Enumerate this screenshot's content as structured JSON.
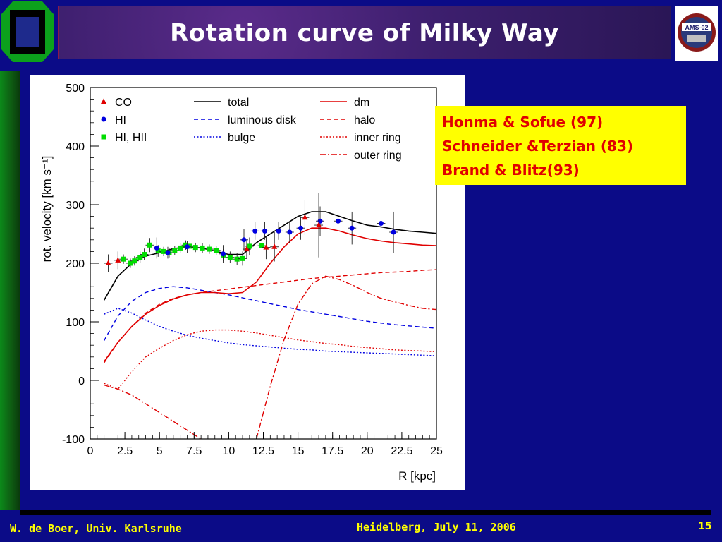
{
  "slide": {
    "title": "Rotation curve of Milky Way",
    "note_lines": [
      "Honma & Sofue (97)",
      "Schneider &Terzian (83)",
      "Brand & Blitz(93)"
    ],
    "footer_left": "W. de Boer, Univ. Karlsruhe",
    "footer_center": "Heidelberg, July 11, 2006",
    "page_number": "15",
    "logo_right_text": "AMS-02",
    "colors": {
      "background": "#0b0b87",
      "title_text": "#ffffff",
      "note_bg": "#ffff00",
      "note_text": "#e00000",
      "footer_text": "#ffff00"
    }
  },
  "chart_data": {
    "type": "line",
    "xlabel": "R [kpc]",
    "ylabel": "rot. velocity [km s⁻¹]",
    "xlim": [
      0,
      25
    ],
    "ylim": [
      -100,
      500
    ],
    "xticks": [
      "0",
      "2.5",
      "5",
      "7.5",
      "10",
      "12.5",
      "15",
      "17.5",
      "20",
      "22.5",
      "25"
    ],
    "yticks": [
      "-100",
      "0",
      "100",
      "200",
      "300",
      "400",
      "500"
    ],
    "legend_markers": [
      {
        "label": "CO",
        "color": "#e00000",
        "marker": "triangle"
      },
      {
        "label": "HI",
        "color": "#0000e0",
        "marker": "circle"
      },
      {
        "label": "HI, HII",
        "color": "#00dd00",
        "marker": "square"
      }
    ],
    "legend_lines": [
      {
        "label": "total",
        "color": "#000000",
        "dash": "solid"
      },
      {
        "label": "luminous disk",
        "color": "#0000e0",
        "dash": "dashed"
      },
      {
        "label": "bulge",
        "color": "#0000e0",
        "dash": "dotted"
      },
      {
        "label": "dm",
        "color": "#e00000",
        "dash": "solid"
      },
      {
        "label": "halo",
        "color": "#e00000",
        "dash": "dashed"
      },
      {
        "label": "inner ring",
        "color": "#e00000",
        "dash": "dotted"
      },
      {
        "label": "outer ring",
        "color": "#e00000",
        "dash": "dashdot"
      }
    ],
    "series": [
      {
        "name": "total",
        "color": "#000000",
        "dash": "solid",
        "width": 1.6,
        "x": [
          1,
          2,
          3,
          4,
          5,
          6,
          7,
          8,
          9,
          10,
          11,
          12,
          13,
          14,
          15,
          16,
          17,
          18,
          19,
          20,
          21,
          22,
          23,
          24,
          25
        ],
        "y": [
          137,
          178,
          200,
          212,
          218,
          225,
          228,
          226,
          221,
          215,
          215,
          235,
          250,
          265,
          280,
          288,
          288,
          280,
          272,
          265,
          262,
          258,
          255,
          253,
          251
        ]
      },
      {
        "name": "luminous disk",
        "color": "#0000e0",
        "dash": "dashed",
        "width": 1.4,
        "x": [
          1,
          2,
          3,
          4,
          5,
          6,
          7,
          8,
          9,
          10,
          11,
          12,
          13,
          14,
          15,
          16,
          17,
          18,
          19,
          20,
          21,
          22,
          23,
          24,
          25
        ],
        "y": [
          68,
          110,
          135,
          150,
          157,
          160,
          158,
          154,
          150,
          146,
          141,
          136,
          131,
          126,
          121,
          117,
          113,
          109,
          105,
          101,
          98,
          95,
          93,
          91,
          89
        ]
      },
      {
        "name": "bulge",
        "color": "#0000e0",
        "dash": "dotted",
        "width": 1.4,
        "x": [
          1,
          2,
          3,
          4,
          5,
          6,
          7,
          8,
          9,
          10,
          11,
          12,
          13,
          14,
          15,
          16,
          17,
          18,
          19,
          20,
          21,
          22,
          23,
          24,
          25
        ],
        "y": [
          113,
          123,
          115,
          103,
          92,
          84,
          77,
          72,
          68,
          64,
          61,
          59,
          57,
          55,
          53,
          52,
          50,
          49,
          48,
          47,
          46,
          45,
          44,
          43,
          42
        ]
      },
      {
        "name": "dm",
        "color": "#e00000",
        "dash": "solid",
        "width": 1.6,
        "x": [
          1,
          2,
          3,
          4,
          5,
          6,
          7,
          8,
          9,
          10,
          11,
          12,
          13,
          14,
          15,
          16,
          17,
          18,
          19,
          20,
          21,
          22,
          23,
          24,
          25
        ],
        "y": [
          32,
          65,
          92,
          113,
          128,
          139,
          146,
          150,
          150,
          148,
          150,
          168,
          200,
          228,
          250,
          260,
          260,
          255,
          248,
          242,
          238,
          235,
          233,
          231,
          230
        ]
      },
      {
        "name": "halo",
        "color": "#e00000",
        "dash": "dashed",
        "width": 1.4,
        "x": [
          1,
          2,
          3,
          4,
          5,
          6,
          7,
          8,
          9,
          10,
          11,
          12,
          13,
          14,
          15,
          16,
          17,
          18,
          19,
          20,
          21,
          22,
          23,
          24,
          25
        ],
        "y": [
          30,
          65,
          92,
          115,
          130,
          140,
          146,
          150,
          153,
          156,
          159,
          162,
          165,
          168,
          171,
          174,
          176,
          178,
          180,
          182,
          184,
          185,
          186,
          188,
          189
        ]
      },
      {
        "name": "inner ring",
        "color": "#e00000",
        "dash": "dotted",
        "width": 1.4,
        "x": [
          1,
          2,
          3,
          4,
          5,
          6,
          7,
          8,
          9,
          10,
          11,
          12,
          13,
          14,
          15,
          16,
          17,
          18,
          19,
          20,
          21,
          22,
          23,
          24,
          25
        ],
        "y": [
          -5,
          -15,
          15,
          40,
          55,
          68,
          78,
          84,
          86,
          86,
          84,
          81,
          77,
          73,
          69,
          66,
          63,
          61,
          58,
          56,
          54,
          52,
          51,
          50,
          49
        ]
      },
      {
        "name": "outer ring",
        "color": "#e00000",
        "dash": "dashdot",
        "width": 1.4,
        "x": [
          1,
          2,
          3,
          4,
          5,
          6,
          7,
          8,
          9,
          10,
          11,
          12,
          13,
          14,
          15,
          16,
          17,
          18,
          19,
          20,
          21,
          22,
          23,
          24,
          25
        ],
        "y": [
          -8,
          -15,
          -25,
          -40,
          -55,
          -70,
          -85,
          -100,
          -115,
          -130,
          -130,
          -100,
          -10,
          70,
          130,
          165,
          178,
          172,
          162,
          150,
          140,
          134,
          128,
          123,
          121
        ]
      }
    ],
    "points": [
      {
        "name": "HI, HII",
        "color": "#00dd00",
        "marker": "square",
        "x": [
          2.4,
          2.9,
          3.2,
          3.6,
          3.9,
          4.3,
          4.9,
          5.3,
          5.7,
          6.1,
          6.5,
          6.9,
          7.2,
          7.6,
          8.1,
          8.6,
          9.1,
          9.6,
          10.1,
          10.6,
          11.0,
          11.5,
          12.4
        ],
        "y": [
          207,
          200,
          204,
          210,
          215,
          231,
          221,
          220,
          218,
          222,
          226,
          231,
          229,
          227,
          226,
          224,
          222,
          214,
          210,
          207,
          208,
          229,
          230
        ],
        "err": [
          8,
          8,
          8,
          10,
          10,
          12,
          10,
          8,
          8,
          8,
          8,
          8,
          8,
          8,
          8,
          8,
          8,
          10,
          10,
          10,
          12,
          15,
          15
        ]
      },
      {
        "name": "HI",
        "color": "#0000e0",
        "marker": "circle",
        "x": [
          4.8,
          5.6,
          7.0,
          9.6,
          11.1,
          11.9,
          12.6,
          13.6,
          14.4,
          15.2,
          16.6,
          17.9,
          18.9,
          21.0,
          21.9
        ],
        "y": [
          226,
          218,
          228,
          216,
          240,
          255,
          255,
          255,
          253,
          260,
          272,
          272,
          260,
          268,
          253
        ],
        "err": [
          18,
          10,
          10,
          15,
          18,
          15,
          15,
          15,
          18,
          20,
          25,
          28,
          28,
          30,
          35
        ]
      },
      {
        "name": "CO",
        "color": "#e00000",
        "marker": "triangle",
        "x": [
          1.3,
          2.0,
          11.3,
          12.7,
          13.3,
          15.5,
          16.5
        ],
        "y": [
          200,
          205,
          224,
          227,
          228,
          278,
          265
        ],
        "err": [
          15,
          15,
          15,
          20,
          25,
          30,
          55
        ]
      }
    ]
  }
}
